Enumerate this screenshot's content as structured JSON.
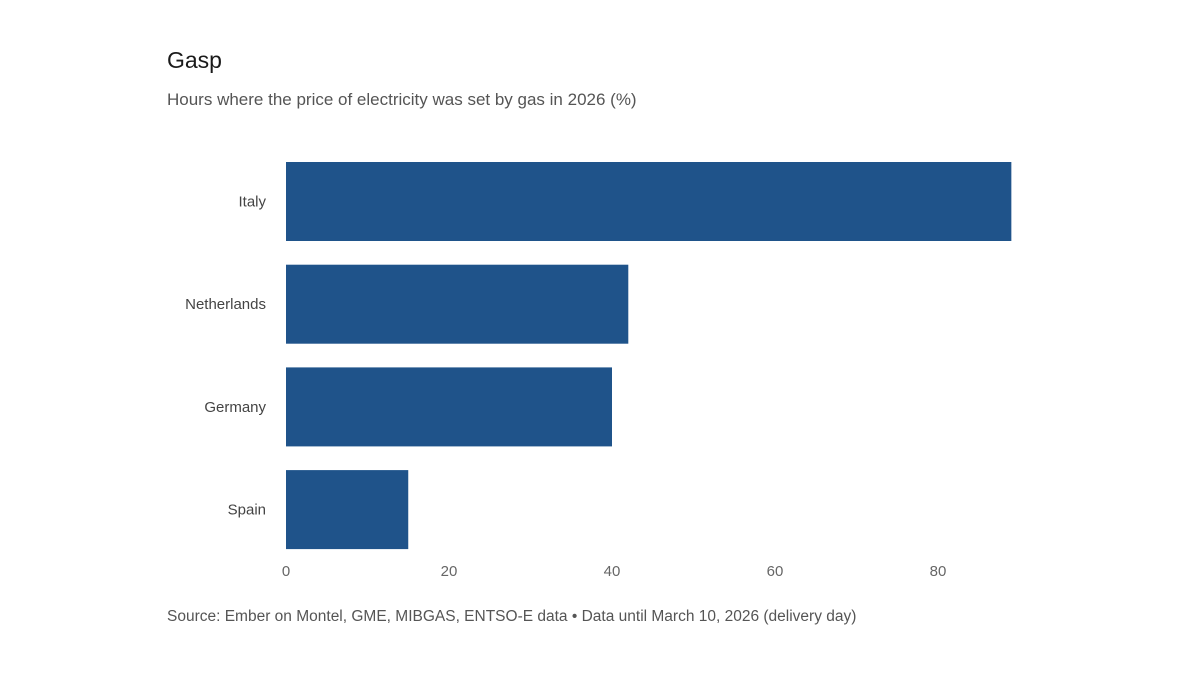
{
  "title": "Gasp",
  "subtitle": "Hours where the price of electricity was set by gas in 2026 (%)",
  "source": "Source: Ember on Montel, GME, MIBGAS, ENTSO-E data • Data until March 10, 2026 (delivery day)",
  "chart_data": {
    "type": "bar",
    "orientation": "horizontal",
    "categories": [
      "Italy",
      "Netherlands",
      "Germany",
      "Spain"
    ],
    "values": [
      89,
      42,
      40,
      15
    ],
    "xlim": [
      0,
      90
    ],
    "xticks": [
      0,
      20,
      40,
      60,
      80
    ],
    "grid": false,
    "bar_color": "#1f538a"
  }
}
